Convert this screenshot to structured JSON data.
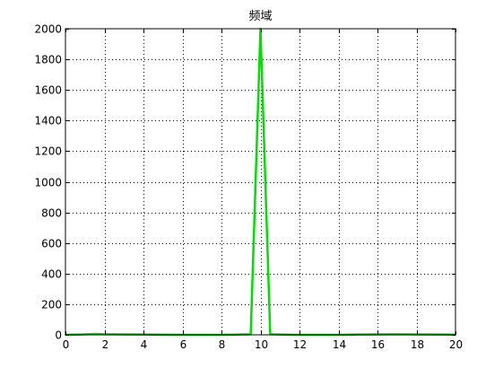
{
  "chart_data": {
    "type": "line",
    "title": "频域",
    "xlabel": "",
    "ylabel": "",
    "xlim": [
      0,
      20
    ],
    "ylim": [
      0,
      2000
    ],
    "xticks": [
      0,
      2,
      4,
      6,
      8,
      10,
      12,
      14,
      16,
      18,
      20
    ],
    "yticks": [
      0,
      200,
      400,
      600,
      800,
      1000,
      1200,
      1400,
      1600,
      1800,
      2000
    ],
    "grid": true,
    "series": [
      {
        "color": "#00e000",
        "x": [
          0,
          1,
          1.5,
          2,
          3,
          4,
          5,
          6,
          7,
          8,
          8.5,
          9,
          9.5,
          10,
          10.5,
          11,
          11.5,
          12,
          13,
          14,
          15,
          16,
          17,
          18,
          19,
          19.5,
          20
        ],
        "y": [
          0,
          3,
          6,
          4,
          3,
          2,
          1,
          0,
          0,
          0,
          1,
          2,
          4,
          2000,
          4,
          2,
          1,
          0,
          0,
          0,
          2,
          3,
          4,
          3,
          2,
          2,
          0
        ]
      }
    ]
  }
}
